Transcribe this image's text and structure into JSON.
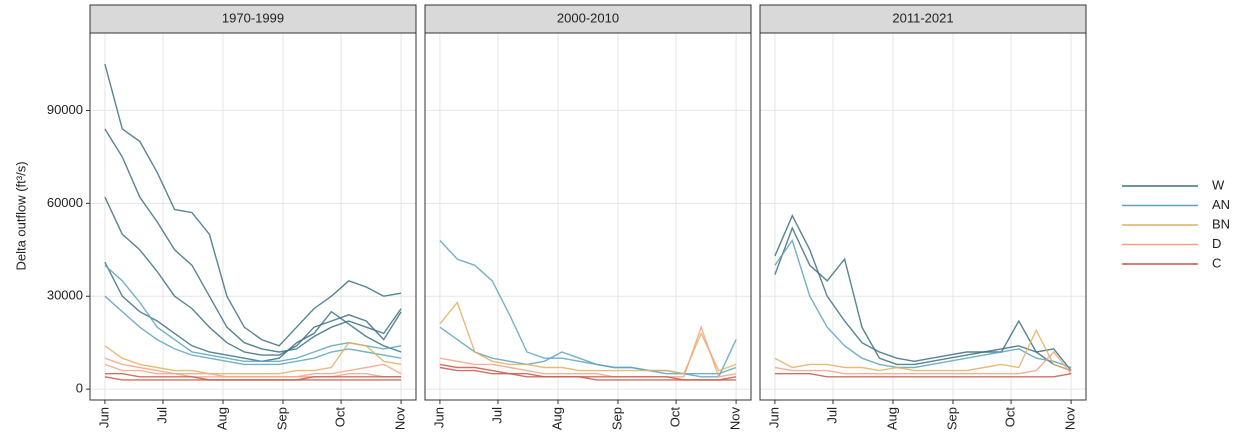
{
  "chart_data": [
    {
      "type": "line",
      "title": "1970-1999",
      "ylabel": "Delta outflow (ft³/s)",
      "legend": [
        {
          "name": "W",
          "color": "#3b6e80"
        },
        {
          "name": "AN",
          "color": "#5aa3bd"
        },
        {
          "name": "BN",
          "color": "#e0b060"
        },
        {
          "name": "D",
          "color": "#f3a385"
        },
        {
          "name": "C",
          "color": "#c8574a"
        }
      ],
      "x": [
        0,
        9,
        18,
        27,
        36,
        45,
        54,
        63,
        72,
        81,
        90,
        99,
        108,
        117,
        126,
        135,
        144,
        153
      ],
      "xlim": [
        -7.7,
        160.7
      ],
      "xticks": [
        {
          "value": 0,
          "label": "Jun"
        },
        {
          "value": 30,
          "label": "Jul"
        },
        {
          "value": 61,
          "label": "Aug"
        },
        {
          "value": 92,
          "label": "Sep"
        },
        {
          "value": 122,
          "label": "Oct"
        },
        {
          "value": 153,
          "label": "Nov"
        }
      ],
      "ylim": [
        -3500,
        115000
      ],
      "yticks": [
        0,
        30000,
        60000,
        90000
      ],
      "grid": true,
      "series": [
        {
          "color": "#3b6e80",
          "values": [
            105000,
            84000,
            80000,
            70000,
            58000,
            57000,
            50000,
            30000,
            20000,
            16000,
            14000,
            20000,
            26000,
            30000,
            35000,
            33000,
            30000,
            31000
          ]
        },
        {
          "color": "#3b6e80",
          "values": [
            84000,
            75000,
            62000,
            54000,
            45000,
            40000,
            30000,
            20000,
            15000,
            13000,
            12000,
            13000,
            17000,
            20000,
            22000,
            20000,
            18000,
            26000
          ]
        },
        {
          "color": "#3b6e80",
          "values": [
            62000,
            50000,
            45000,
            38000,
            30000,
            26000,
            20000,
            15000,
            12000,
            11000,
            11000,
            14000,
            20000,
            22000,
            24000,
            22000,
            16000,
            25000
          ]
        },
        {
          "color": "#3b6e80",
          "values": [
            41000,
            30000,
            25000,
            22000,
            18000,
            14000,
            12000,
            11000,
            10000,
            9000,
            10000,
            15000,
            18000,
            25000,
            21000,
            17000,
            14000,
            12000
          ]
        },
        {
          "color": "#5aa3bd",
          "values": [
            40000,
            35000,
            28000,
            20000,
            16000,
            12000,
            11000,
            10000,
            9000,
            9000,
            9000,
            10000,
            12000,
            14000,
            15000,
            14000,
            13000,
            14000
          ]
        },
        {
          "color": "#5aa3bd",
          "values": [
            30000,
            25000,
            20000,
            16000,
            13000,
            11000,
            10000,
            9000,
            8000,
            8000,
            8000,
            9000,
            10000,
            12000,
            13000,
            12000,
            11000,
            10000
          ]
        },
        {
          "color": "#e0b060",
          "values": [
            14000,
            10000,
            8000,
            7000,
            6000,
            6000,
            5000,
            5000,
            5000,
            5000,
            5000,
            6000,
            6000,
            7000,
            15000,
            14000,
            9000,
            8000
          ]
        },
        {
          "color": "#f3a385",
          "values": [
            10000,
            8000,
            7000,
            6000,
            5000,
            5000,
            5000,
            4000,
            4000,
            4000,
            4000,
            4000,
            5000,
            5000,
            6000,
            7000,
            8000,
            5000
          ]
        },
        {
          "color": "#f3a385",
          "values": [
            8000,
            6000,
            6000,
            5000,
            5000,
            4000,
            4000,
            4000,
            4000,
            4000,
            4000,
            4000,
            4000,
            4000,
            5000,
            5000,
            4000,
            4000
          ]
        },
        {
          "color": "#c8574a",
          "values": [
            5000,
            5000,
            4000,
            4000,
            4000,
            4000,
            3000,
            3000,
            3000,
            3000,
            3000,
            3000,
            4000,
            4000,
            4000,
            4000,
            4000,
            4000
          ]
        },
        {
          "color": "#c8574a",
          "values": [
            4000,
            3000,
            3000,
            3000,
            3000,
            3000,
            3000,
            3000,
            3000,
            3000,
            3000,
            3000,
            3000,
            3000,
            3000,
            3000,
            3000,
            3000
          ]
        }
      ]
    },
    {
      "type": "line",
      "title": "2000-2010",
      "x": [
        0,
        9,
        18,
        27,
        36,
        45,
        54,
        63,
        72,
        81,
        90,
        99,
        108,
        117,
        126,
        135,
        144,
        153
      ],
      "xlim": [
        -7.7,
        160.7
      ],
      "xticks": [
        {
          "value": 0,
          "label": "Jun"
        },
        {
          "value": 30,
          "label": "Jul"
        },
        {
          "value": 61,
          "label": "Aug"
        },
        {
          "value": 92,
          "label": "Sep"
        },
        {
          "value": 122,
          "label": "Oct"
        },
        {
          "value": 153,
          "label": "Nov"
        }
      ],
      "ylim": [
        -3500,
        115000
      ],
      "yticks": [
        0,
        30000,
        60000,
        90000
      ],
      "grid": true,
      "series": [
        {
          "color": "#5aa3bd",
          "values": [
            48000,
            42000,
            40000,
            35000,
            24000,
            12000,
            10000,
            10000,
            9000,
            8000,
            7000,
            7000,
            6000,
            6000,
            5000,
            4000,
            4000,
            16000
          ]
        },
        {
          "color": "#5aa3bd",
          "values": [
            20000,
            16000,
            12000,
            10000,
            9000,
            8000,
            9000,
            12000,
            10000,
            8000,
            7000,
            7000,
            6000,
            5000,
            5000,
            5000,
            5000,
            7000
          ]
        },
        {
          "color": "#e0b060",
          "values": [
            21000,
            28000,
            12000,
            9000,
            8000,
            8000,
            7000,
            7000,
            6000,
            6000,
            6000,
            6000,
            6000,
            6000,
            5000,
            18000,
            6000,
            8000
          ]
        },
        {
          "color": "#f3a385",
          "values": [
            10000,
            9000,
            8000,
            8000,
            7000,
            6000,
            5000,
            5000,
            5000,
            5000,
            4000,
            4000,
            4000,
            4000,
            4000,
            20000,
            4000,
            5000
          ]
        },
        {
          "color": "#c8574a",
          "values": [
            8000,
            7000,
            7000,
            6000,
            5000,
            5000,
            4000,
            4000,
            4000,
            4000,
            4000,
            4000,
            4000,
            4000,
            3000,
            3000,
            3000,
            4000
          ]
        },
        {
          "color": "#c8574a",
          "values": [
            7000,
            6000,
            6000,
            5000,
            5000,
            4000,
            4000,
            4000,
            4000,
            3000,
            3000,
            3000,
            3000,
            3000,
            3000,
            3000,
            3000,
            3000
          ]
        }
      ]
    },
    {
      "type": "line",
      "title": "2011-2021",
      "x": [
        0,
        9,
        18,
        27,
        36,
        45,
        54,
        63,
        72,
        81,
        90,
        99,
        108,
        117,
        126,
        135,
        144,
        153
      ],
      "xlim": [
        -7.7,
        160.7
      ],
      "xticks": [
        {
          "value": 0,
          "label": "Jun"
        },
        {
          "value": 30,
          "label": "Jul"
        },
        {
          "value": 61,
          "label": "Aug"
        },
        {
          "value": 92,
          "label": "Sep"
        },
        {
          "value": 122,
          "label": "Oct"
        },
        {
          "value": 153,
          "label": "Nov"
        }
      ],
      "ylim": [
        -3500,
        115000
      ],
      "yticks": [
        0,
        30000,
        60000,
        90000
      ],
      "grid": true,
      "series": [
        {
          "color": "#3b6e80",
          "values": [
            43000,
            56000,
            45000,
            30000,
            22000,
            15000,
            12000,
            10000,
            9000,
            10000,
            11000,
            12000,
            12000,
            13000,
            14000,
            12000,
            13000,
            6000
          ]
        },
        {
          "color": "#3b6e80",
          "values": [
            37000,
            52000,
            40000,
            35000,
            42000,
            20000,
            10000,
            8000,
            8000,
            9000,
            10000,
            11000,
            12000,
            12000,
            22000,
            12000,
            8000,
            6000
          ]
        },
        {
          "color": "#5aa3bd",
          "values": [
            40000,
            48000,
            30000,
            20000,
            14000,
            10000,
            8000,
            7000,
            7000,
            8000,
            9000,
            10000,
            11000,
            12000,
            13000,
            10000,
            9000,
            7000
          ]
        },
        {
          "color": "#e0b060",
          "values": [
            10000,
            7000,
            8000,
            8000,
            7000,
            7000,
            6000,
            7000,
            6000,
            6000,
            6000,
            6000,
            7000,
            8000,
            7000,
            19000,
            8000,
            6000
          ]
        },
        {
          "color": "#f3a385",
          "values": [
            7000,
            6000,
            6000,
            6000,
            5000,
            5000,
            5000,
            5000,
            5000,
            5000,
            5000,
            5000,
            5000,
            5000,
            5000,
            6000,
            12000,
            5000
          ]
        },
        {
          "color": "#c8574a",
          "values": [
            5000,
            5000,
            5000,
            4000,
            4000,
            4000,
            4000,
            4000,
            4000,
            4000,
            4000,
            4000,
            4000,
            4000,
            4000,
            4000,
            4000,
            5000
          ]
        }
      ]
    }
  ]
}
